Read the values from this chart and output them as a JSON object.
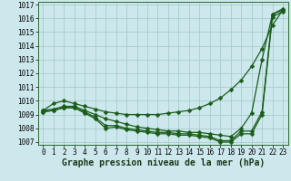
{
  "title": "Graphe pression niveau de la mer (hPa)",
  "bg_color": "#cce8ec",
  "grid_color": "#aacccc",
  "line_color": "#1a5c1a",
  "xlim": [
    -0.5,
    23.5
  ],
  "ylim": [
    1006.8,
    1017.2
  ],
  "xtick_labels": [
    "0",
    "1",
    "2",
    "3",
    "4",
    "5",
    "6",
    "7",
    "8",
    "9",
    "10",
    "11",
    "12",
    "13",
    "14",
    "15",
    "16",
    "17",
    "18",
    "19",
    "20",
    "21",
    "22",
    "23"
  ],
  "xtick_vals": [
    0,
    1,
    2,
    3,
    4,
    5,
    6,
    7,
    8,
    9,
    10,
    11,
    12,
    13,
    14,
    15,
    16,
    17,
    18,
    19,
    20,
    21,
    22,
    23
  ],
  "ytick_vals": [
    1007,
    1008,
    1009,
    1010,
    1011,
    1012,
    1013,
    1014,
    1015,
    1016,
    1017
  ],
  "series_upper_x": [
    0,
    1,
    2,
    3,
    4,
    5,
    6,
    7,
    8,
    9,
    10,
    11,
    12,
    13,
    14,
    15,
    16,
    17,
    18,
    19,
    20,
    21,
    22,
    23
  ],
  "series_upper_y": [
    1009.3,
    1009.8,
    1010.0,
    1009.8,
    1009.6,
    1009.4,
    1009.2,
    1009.1,
    1009.0,
    1009.0,
    1009.0,
    1009.0,
    1009.1,
    1009.2,
    1009.3,
    1009.5,
    1009.8,
    1010.2,
    1010.8,
    1011.5,
    1012.5,
    1013.8,
    1015.5,
    1016.6
  ],
  "series_mid_x": [
    0,
    1,
    2,
    3,
    4,
    5,
    6,
    7,
    8,
    9,
    10,
    11,
    12,
    13,
    14,
    15,
    16,
    17,
    18,
    19,
    20,
    21,
    22,
    23
  ],
  "series_mid_y": [
    1009.3,
    1009.4,
    1009.6,
    1009.6,
    1009.3,
    1009.0,
    1008.7,
    1008.5,
    1008.3,
    1008.1,
    1008.0,
    1007.9,
    1007.8,
    1007.8,
    1007.7,
    1007.7,
    1007.6,
    1007.5,
    1007.4,
    1008.0,
    1009.1,
    1013.0,
    1016.3,
    1016.7
  ],
  "series_low_x": [
    0,
    1,
    2,
    3,
    4,
    5,
    6,
    7,
    8,
    9,
    10,
    11,
    12,
    13,
    14,
    15,
    16,
    17,
    18,
    19,
    20,
    21,
    22,
    23
  ],
  "series_low_y": [
    1009.2,
    1009.3,
    1009.5,
    1009.5,
    1009.2,
    1008.8,
    1008.2,
    1008.2,
    1008.0,
    1007.9,
    1007.8,
    1007.7,
    1007.7,
    1007.6,
    1007.6,
    1007.5,
    1007.4,
    1007.1,
    1007.1,
    1007.8,
    1007.8,
    1009.2,
    1016.3,
    1016.6
  ],
  "series_low2_x": [
    0,
    1,
    2,
    3,
    4,
    5,
    6,
    7,
    8,
    9,
    10,
    11,
    12,
    13,
    14,
    15,
    16,
    17,
    18,
    19,
    20,
    21,
    22,
    23
  ],
  "series_low2_y": [
    1009.2,
    1009.3,
    1009.5,
    1009.5,
    1009.1,
    1008.7,
    1008.0,
    1008.1,
    1007.9,
    1007.8,
    1007.7,
    1007.6,
    1007.6,
    1007.5,
    1007.5,
    1007.4,
    1007.3,
    1007.0,
    1007.0,
    1007.6,
    1007.6,
    1009.0,
    1016.1,
    1016.5
  ],
  "tick_fontsize": 5.5,
  "label_fontsize": 7,
  "marker_size": 2.5,
  "linewidth": 0.9
}
